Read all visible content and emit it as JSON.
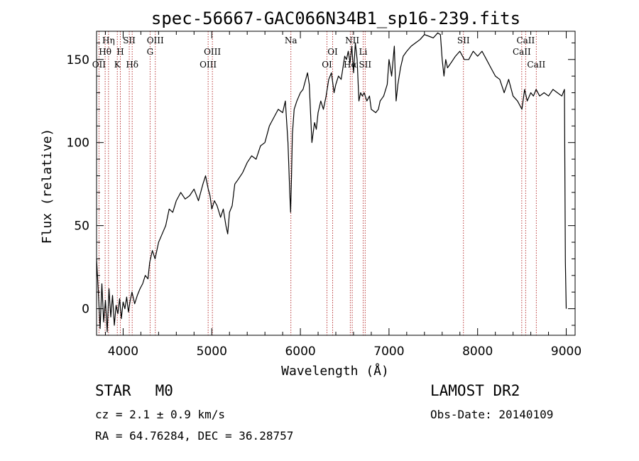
{
  "chart_data": {
    "type": "line",
    "title": "spec-56667-GAC066N34B1_sp16-239.fits",
    "xlabel": "Wavelength (Å)",
    "ylabel": "Flux (relative)",
    "xlim": [
      3700,
      9100
    ],
    "ylim": [
      -16,
      167
    ],
    "xticks": [
      4000,
      5000,
      6000,
      7000,
      8000,
      9000
    ],
    "yticks": [
      0,
      50,
      100,
      150
    ],
    "grid": false,
    "legend": "none",
    "series": [
      {
        "x": [
          3700,
          3720,
          3740,
          3760,
          3780,
          3800,
          3820,
          3840,
          3860,
          3880,
          3900,
          3920,
          3940,
          3960,
          3980,
          4000,
          4020,
          4040,
          4060,
          4080,
          4100,
          4130,
          4160,
          4190,
          4220,
          4250,
          4280,
          4300,
          4330,
          4360,
          4400,
          4440,
          4480,
          4520,
          4560,
          4600,
          4650,
          4700,
          4750,
          4800,
          4850,
          4900,
          4930,
          4960,
          4980,
          5000,
          5030,
          5060,
          5100,
          5130,
          5160,
          5180,
          5200,
          5230,
          5260,
          5300,
          5350,
          5400,
          5450,
          5500,
          5550,
          5600,
          5650,
          5700,
          5750,
          5800,
          5830,
          5860,
          5880,
          5890,
          5900,
          5910,
          5930,
          5960,
          6000,
          6030,
          6060,
          6080,
          6100,
          6130,
          6160,
          6180,
          6200,
          6230,
          6260,
          6290,
          6320,
          6350,
          6380,
          6400,
          6430,
          6460,
          6500,
          6520,
          6540,
          6560,
          6580,
          6600,
          6620,
          6640,
          6660,
          6680,
          6700,
          6720,
          6750,
          6780,
          6800,
          6850,
          6880,
          6900,
          6940,
          6980,
          7000,
          7030,
          7060,
          7080,
          7100,
          7130,
          7160,
          7200,
          7250,
          7300,
          7350,
          7400,
          7450,
          7500,
          7550,
          7580,
          7600,
          7620,
          7640,
          7660,
          7700,
          7750,
          7800,
          7850,
          7900,
          7950,
          8000,
          8050,
          8100,
          8150,
          8200,
          8250,
          8300,
          8350,
          8400,
          8450,
          8500,
          8530,
          8560,
          8600,
          8630,
          8660,
          8700,
          8750,
          8800,
          8850,
          8900,
          8950,
          8980,
          8990,
          9000
        ],
        "y": [
          30,
          10,
          -12,
          15,
          -8,
          5,
          -14,
          12,
          -5,
          8,
          -10,
          2,
          -3,
          6,
          -6,
          4,
          0,
          7,
          -2,
          5,
          10,
          3,
          8,
          12,
          15,
          20,
          18,
          28,
          35,
          30,
          40,
          45,
          50,
          60,
          58,
          65,
          70,
          66,
          68,
          72,
          65,
          75,
          80,
          72,
          68,
          60,
          65,
          62,
          55,
          60,
          50,
          45,
          58,
          62,
          75,
          78,
          82,
          88,
          92,
          90,
          98,
          100,
          110,
          115,
          120,
          118,
          125,
          100,
          70,
          58,
          80,
          105,
          120,
          125,
          130,
          132,
          138,
          142,
          135,
          100,
          112,
          108,
          118,
          125,
          120,
          128,
          138,
          142,
          130,
          135,
          140,
          138,
          152,
          150,
          155,
          148,
          158,
          142,
          160,
          150,
          125,
          130,
          128,
          130,
          125,
          128,
          120,
          118,
          120,
          125,
          128,
          135,
          150,
          140,
          158,
          125,
          135,
          145,
          152,
          155,
          158,
          160,
          162,
          165,
          164,
          163,
          166,
          165,
          150,
          140,
          150,
          145,
          148,
          152,
          155,
          150,
          150,
          155,
          152,
          155,
          150,
          145,
          140,
          138,
          130,
          138,
          128,
          125,
          120,
          132,
          125,
          130,
          128,
          132,
          128,
          130,
          128,
          132,
          130,
          128,
          132,
          28,
          0
        ]
      }
    ],
    "line_markers": [
      {
        "label": "Hη",
        "x": 3835,
        "row": 1
      },
      {
        "label": "Hθ",
        "x": 3797,
        "row": 2
      },
      {
        "label": "OII",
        "x": 3727,
        "row": 3
      },
      {
        "label": "SII",
        "x": 4069,
        "row": 1
      },
      {
        "label": "H",
        "x": 3968,
        "row": 2
      },
      {
        "label": "K",
        "x": 3934,
        "row": 3
      },
      {
        "label": "Hδ",
        "x": 4102,
        "row": 3
      },
      {
        "label": "OIII",
        "x": 4363,
        "row": 1
      },
      {
        "label": "G",
        "x": 4304,
        "row": 2
      },
      {
        "label": "OIII",
        "x": 5007,
        "row": 2
      },
      {
        "label": "OIII",
        "x": 4959,
        "row": 3
      },
      {
        "label": "Na",
        "x": 5893,
        "row": 1
      },
      {
        "label": "OI",
        "x": 6364,
        "row": 2
      },
      {
        "label": "OI",
        "x": 6300,
        "row": 3
      },
      {
        "label": "NII",
        "x": 6585,
        "row": 1
      },
      {
        "label": "Li",
        "x": 6708,
        "row": 2
      },
      {
        "label": "Hα",
        "x": 6563,
        "row": 3
      },
      {
        "label": "SII",
        "x": 6731,
        "row": 3
      },
      {
        "label": "SII",
        "x": 7840,
        "row": 1
      },
      {
        "label": "CaII",
        "x": 8542,
        "row": 1
      },
      {
        "label": "CaII",
        "x": 8498,
        "row": 2
      },
      {
        "label": "CaII",
        "x": 8662,
        "row": 3
      }
    ],
    "marker_color": "#b22222"
  },
  "info": {
    "object_class": "STAR",
    "subclass": "M0",
    "survey": "LAMOST DR2",
    "cz": "cz = 2.1 ± 0.9 km/s",
    "obs_date": "Obs-Date: 20140109",
    "radec": "RA =  64.76284, DEC =  36.28757"
  }
}
